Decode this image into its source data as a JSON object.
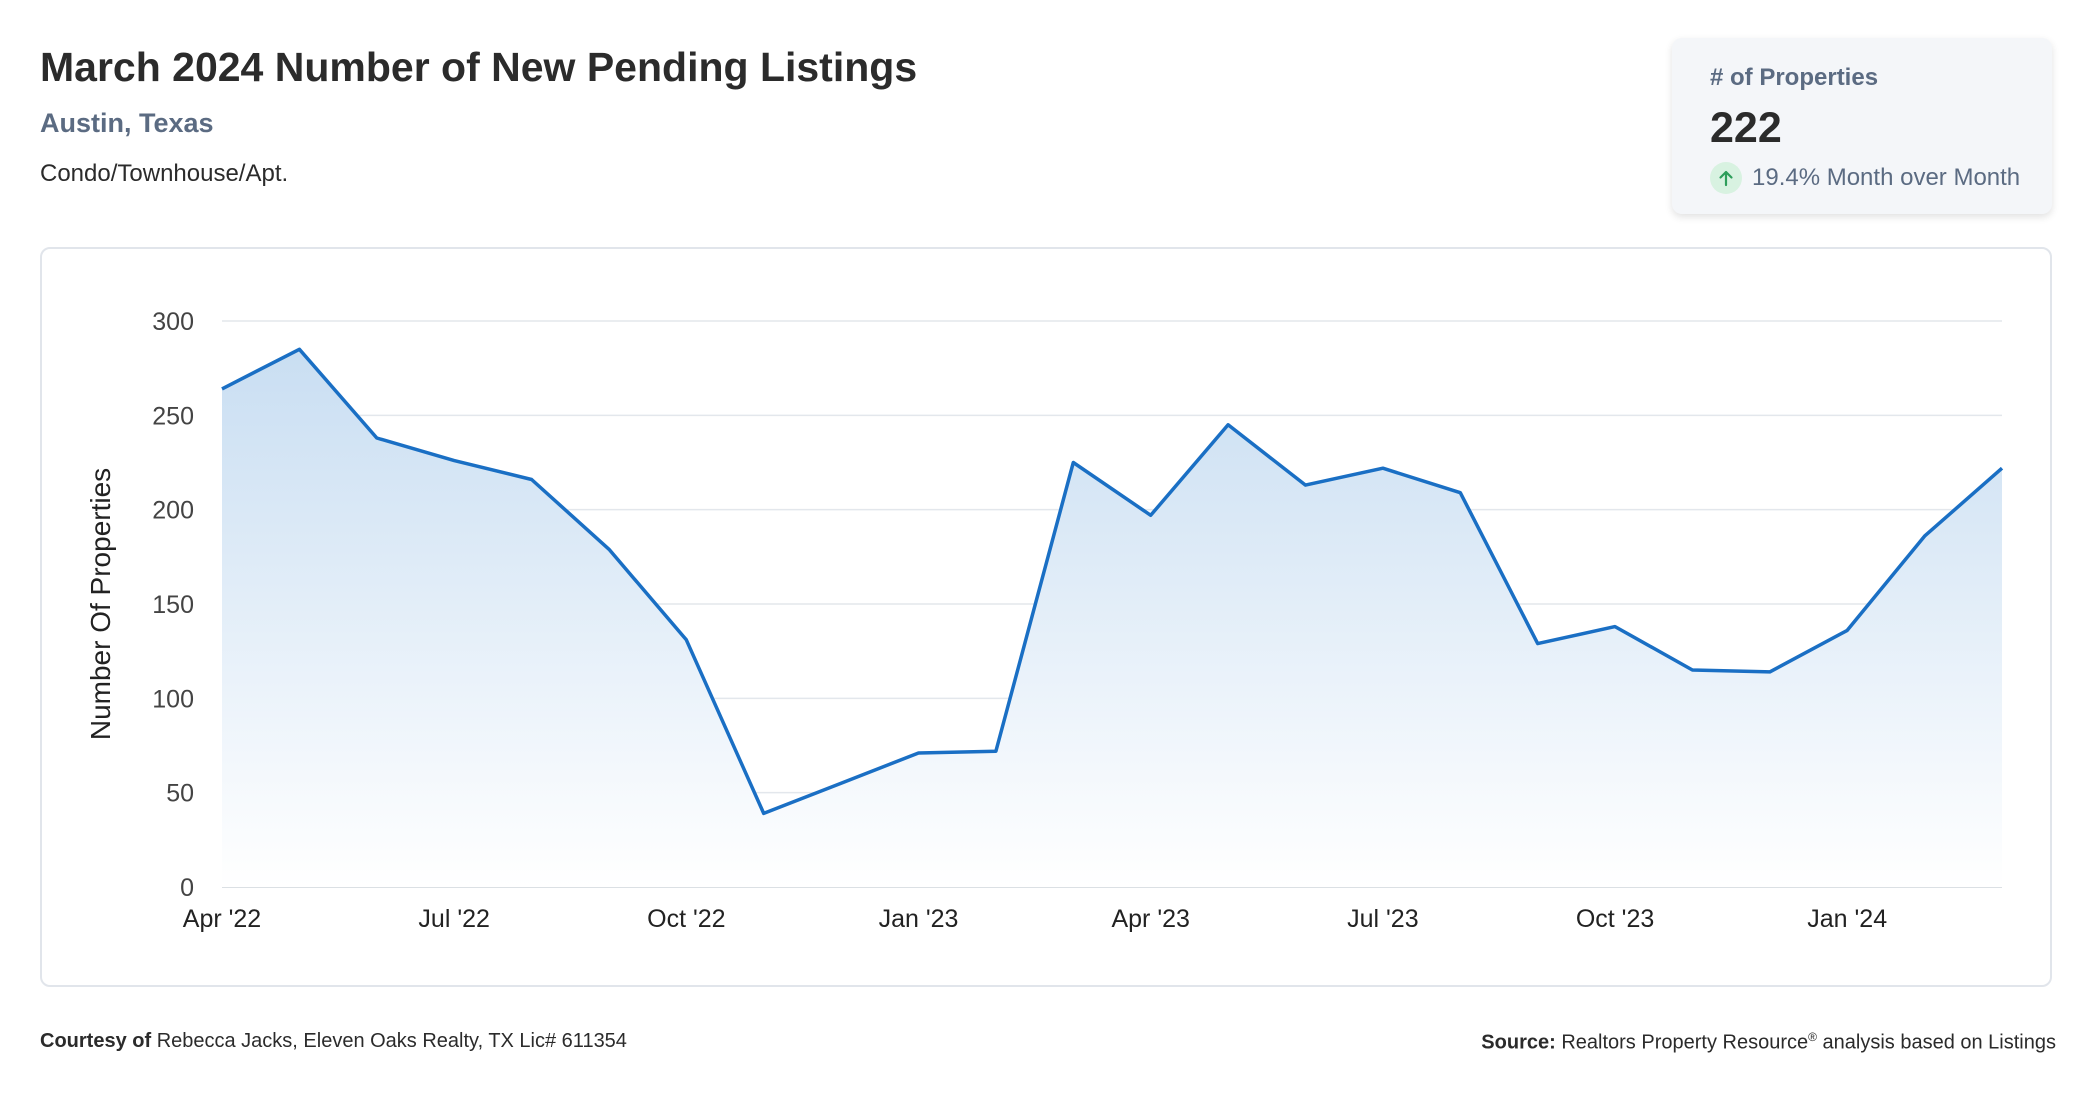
{
  "header": {
    "title": "March 2024 Number of New Pending Listings",
    "location": "Austin, Texas",
    "category": "Condo/Townhouse/Apt."
  },
  "stat_card": {
    "label": "# of Properties",
    "value": "222",
    "change_text": "19.4% Month over Month",
    "change_icon": "arrow-up-icon",
    "colors": {
      "arrow": "#2e9e5b",
      "arrow_bg": "#d8f2e1"
    }
  },
  "footer": {
    "courtesy_label": "Courtesy of",
    "courtesy_text": "Rebecca Jacks, Eleven Oaks Realty, TX Lic# 611354",
    "source_label": "Source:",
    "source_text": "Realtors Property Resource",
    "source_sup": "®",
    "source_suffix": " analysis based on Listings"
  },
  "chart_data": {
    "type": "area",
    "title": "",
    "xlabel": "",
    "ylabel": "Number Of Properties",
    "ylim": [
      0,
      300
    ],
    "yticks": [
      0,
      50,
      100,
      150,
      200,
      250,
      300
    ],
    "grid": true,
    "legend": "none",
    "x": [
      "Apr '22",
      "May '22",
      "Jun '22",
      "Jul '22",
      "Aug '22",
      "Sep '22",
      "Oct '22",
      "Nov '22",
      "Dec '22",
      "Jan '23",
      "Feb '23",
      "Mar '23",
      "Apr '23",
      "May '23",
      "Jun '23",
      "Jul '23",
      "Aug '23",
      "Sep '23",
      "Oct '23",
      "Nov '23",
      "Dec '23",
      "Jan '24",
      "Feb '24",
      "Mar '24"
    ],
    "xtick_labels": [
      "Apr '22",
      "Jul '22",
      "Oct '22",
      "Jan '23",
      "Apr '23",
      "Jul '23",
      "Oct '23",
      "Jan '24"
    ],
    "series": [
      {
        "values": [
          264,
          285,
          238,
          226,
          216,
          179,
          131,
          39,
          55,
          71,
          72,
          225,
          197,
          245,
          213,
          222,
          209,
          129,
          138,
          115,
          114,
          136,
          186,
          222
        ]
      }
    ],
    "colors": {
      "line": "#1a6fc4",
      "fill_top": "#c9def2",
      "fill_bottom": "#ffffff",
      "grid": "#e3e7ec"
    }
  }
}
